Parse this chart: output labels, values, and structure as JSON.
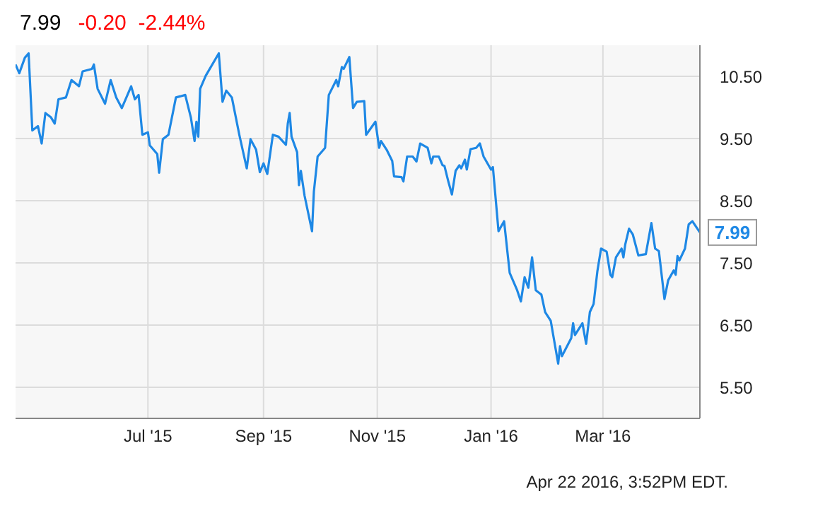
{
  "chart_data": {
    "type": "line",
    "title": "7.99",
    "subtitle": "-0.20  -2.44%",
    "x": [
      "2015-04-21",
      "2015-04-23",
      "2015-04-26",
      "2015-04-28",
      "2015-04-30",
      "2015-05-03",
      "2015-05-05",
      "2015-05-07",
      "2015-05-10",
      "2015-05-12",
      "2015-05-14",
      "2015-05-18",
      "2015-05-21",
      "2015-05-25",
      "2015-05-27",
      "2015-06-01",
      "2015-06-02",
      "2015-06-04",
      "2015-06-08",
      "2015-06-11",
      "2015-06-14",
      "2015-06-17",
      "2015-06-19",
      "2015-06-22",
      "2015-06-24",
      "2015-06-26",
      "2015-06-28",
      "2015-07-01",
      "2015-07-02",
      "2015-07-06",
      "2015-07-07",
      "2015-07-09",
      "2015-07-12",
      "2015-07-16",
      "2015-07-21",
      "2015-07-24",
      "2015-07-26",
      "2015-07-27",
      "2015-07-28",
      "2015-07-29",
      "2015-08-01",
      "2015-08-08",
      "2015-08-10",
      "2015-08-12",
      "2015-08-15",
      "2015-08-19",
      "2015-08-23",
      "2015-08-25",
      "2015-08-28",
      "2015-08-30",
      "2015-09-01",
      "2015-09-03",
      "2015-09-06",
      "2015-09-09",
      "2015-09-13",
      "2015-09-14",
      "2015-09-15",
      "2015-09-16",
      "2015-09-19",
      "2015-09-20",
      "2015-09-21",
      "2015-09-23",
      "2015-09-27",
      "2015-09-28",
      "2015-09-30",
      "2015-10-04",
      "2015-10-06",
      "2015-10-10",
      "2015-10-11",
      "2015-10-13",
      "2015-10-14",
      "2015-10-17",
      "2015-10-19",
      "2015-10-21",
      "2015-10-25",
      "2015-10-26",
      "2015-10-31",
      "2015-11-02",
      "2015-11-03",
      "2015-11-06",
      "2015-11-09",
      "2015-11-10",
      "2015-11-14",
      "2015-11-15",
      "2015-11-17",
      "2015-11-20",
      "2015-11-22",
      "2015-11-24",
      "2015-11-28",
      "2015-11-30",
      "2015-12-01",
      "2015-12-04",
      "2015-12-06",
      "2015-12-07",
      "2015-12-09",
      "2015-12-11",
      "2015-12-13",
      "2015-12-15",
      "2015-12-16",
      "2015-12-18",
      "2015-12-19",
      "2015-12-21",
      "2015-12-24",
      "2015-12-26",
      "2015-12-28",
      "2016-01-01",
      "2016-01-02",
      "2016-01-05",
      "2016-01-08",
      "2016-01-11",
      "2016-01-13",
      "2016-01-15",
      "2016-01-17",
      "2016-01-19",
      "2016-01-21",
      "2016-01-23",
      "2016-01-25",
      "2016-01-28",
      "2016-01-30",
      "2016-02-02",
      "2016-02-06",
      "2016-02-07",
      "2016-02-08",
      "2016-02-13",
      "2016-02-14",
      "2016-02-15",
      "2016-02-19",
      "2016-02-21",
      "2016-02-23",
      "2016-02-25",
      "2016-02-27",
      "2016-02-29",
      "2016-03-03",
      "2016-03-05",
      "2016-03-06",
      "2016-03-08",
      "2016-03-11",
      "2016-03-12",
      "2016-03-13",
      "2016-03-15",
      "2016-03-17",
      "2016-03-20",
      "2016-03-24",
      "2016-03-27",
      "2016-03-29",
      "2016-03-31",
      "2016-04-03",
      "2016-04-05",
      "2016-04-08",
      "2016-04-09",
      "2016-04-10",
      "2016-04-11",
      "2016-04-14",
      "2016-04-16",
      "2016-04-18",
      "2016-04-22"
    ],
    "series": [
      {
        "color": "#1e88e5",
        "values": [
          10.69,
          10.55,
          10.8,
          10.87,
          9.63,
          9.7,
          9.42,
          9.91,
          9.84,
          9.74,
          10.13,
          10.16,
          10.44,
          10.34,
          10.58,
          10.62,
          10.69,
          10.3,
          10.06,
          10.44,
          10.16,
          9.99,
          10.13,
          10.34,
          10.13,
          10.2,
          9.56,
          9.6,
          9.39,
          9.25,
          8.95,
          9.49,
          9.56,
          10.16,
          10.2,
          9.84,
          9.46,
          9.77,
          9.53,
          10.3,
          10.51,
          10.87,
          10.09,
          10.27,
          10.16,
          9.56,
          9.02,
          9.49,
          9.32,
          8.96,
          9.1,
          8.93,
          9.56,
          9.53,
          9.4,
          9.74,
          9.91,
          9.53,
          9.28,
          8.75,
          8.98,
          8.58,
          8.01,
          8.65,
          9.21,
          9.35,
          10.2,
          10.44,
          10.34,
          10.65,
          10.62,
          10.81,
          9.99,
          10.09,
          10.1,
          9.56,
          9.77,
          9.35,
          9.46,
          9.32,
          9.14,
          8.89,
          8.88,
          8.81,
          9.21,
          9.21,
          9.13,
          9.42,
          9.35,
          9.1,
          9.21,
          9.21,
          9.07,
          9.06,
          8.82,
          8.6,
          8.98,
          9.07,
          9.02,
          9.16,
          9.0,
          9.33,
          9.35,
          9.42,
          9.21,
          9.0,
          9.04,
          8.01,
          8.17,
          7.34,
          7.2,
          7.06,
          6.88,
          7.27,
          7.1,
          7.59,
          7.06,
          6.99,
          6.71,
          6.57,
          5.88,
          6.16,
          6.0,
          6.29,
          6.53,
          6.34,
          6.53,
          6.2,
          6.71,
          6.84,
          7.36,
          7.73,
          7.68,
          7.31,
          7.27,
          7.59,
          7.73,
          7.59,
          7.8,
          8.05,
          7.96,
          7.62,
          7.64,
          8.14,
          7.73,
          7.69,
          6.92,
          7.22,
          7.38,
          7.31,
          7.61,
          7.54,
          7.73,
          8.12,
          8.17,
          7.99
        ]
      }
    ],
    "xlim": [
      "2015-04-21",
      "2016-04-22"
    ],
    "xticks": [
      {
        "value": "2015-07-01",
        "label": "Jul '15"
      },
      {
        "value": "2015-09-01",
        "label": "Sep '15"
      },
      {
        "value": "2015-11-01",
        "label": "Nov '15"
      },
      {
        "value": "2016-01-01",
        "label": "Jan '16"
      },
      {
        "value": "2016-03-01",
        "label": "Mar '16"
      }
    ],
    "ylim": [
      5,
      11
    ],
    "yticks": [
      {
        "value": 5.5,
        "label": "5.50"
      },
      {
        "value": 6.5,
        "label": "6.50"
      },
      {
        "value": 7.5,
        "label": "7.50"
      },
      {
        "value": 8.5,
        "label": "8.50"
      },
      {
        "value": 9.5,
        "label": "9.50"
      },
      {
        "value": 10.5,
        "label": "10.50"
      }
    ],
    "grid": true,
    "marker": "none",
    "line_style": "solid",
    "annotations": [
      {
        "text": "7.99",
        "x": "2016-04-22",
        "y": 7.99
      },
      "Apr 22 2016, 3:52PM EDT."
    ]
  }
}
